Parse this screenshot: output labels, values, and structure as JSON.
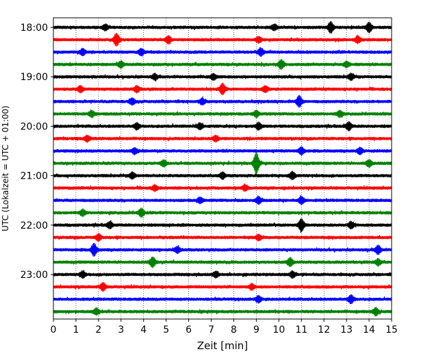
{
  "chart_data": {
    "type": "line",
    "title": "",
    "xlabel": "Zeit  [min]",
    "ylabel": "UTC (Lokalzeit = UTC + 01:00)",
    "xlim": [
      0,
      15
    ],
    "x_ticks": [
      "0",
      "1",
      "2",
      "3",
      "4",
      "5",
      "6",
      "7",
      "8",
      "9",
      "10",
      "11",
      "12",
      "13",
      "14",
      "15"
    ],
    "y_ticks": [
      "18:00",
      "19:00",
      "20:00",
      "21:00",
      "22:00",
      "23:00"
    ],
    "grid": "vertical dotted lines at each minute",
    "colors": [
      "#000000",
      "#ff0000",
      "#0000ff",
      "#008000"
    ],
    "series": [
      {
        "start": "18:00",
        "color": "#000000"
      },
      {
        "start": "18:15",
        "color": "#ff0000"
      },
      {
        "start": "18:30",
        "color": "#0000ff"
      },
      {
        "start": "18:45",
        "color": "#008000"
      },
      {
        "start": "19:00",
        "color": "#000000"
      },
      {
        "start": "19:15",
        "color": "#ff0000"
      },
      {
        "start": "19:30",
        "color": "#0000ff"
      },
      {
        "start": "19:45",
        "color": "#008000"
      },
      {
        "start": "20:00",
        "color": "#000000"
      },
      {
        "start": "20:15",
        "color": "#ff0000"
      },
      {
        "start": "20:30",
        "color": "#0000ff"
      },
      {
        "start": "20:45",
        "color": "#008000"
      },
      {
        "start": "21:00",
        "color": "#000000"
      },
      {
        "start": "21:15",
        "color": "#ff0000"
      },
      {
        "start": "21:30",
        "color": "#0000ff"
      },
      {
        "start": "21:45",
        "color": "#008000"
      },
      {
        "start": "22:00",
        "color": "#000000"
      },
      {
        "start": "22:15",
        "color": "#ff0000"
      },
      {
        "start": "22:30",
        "color": "#0000ff"
      },
      {
        "start": "22:45",
        "color": "#008000"
      },
      {
        "start": "23:00",
        "color": "#000000"
      },
      {
        "start": "23:15",
        "color": "#ff0000"
      },
      {
        "start": "23:30",
        "color": "#0000ff"
      },
      {
        "start": "23:45",
        "color": "#008000"
      }
    ],
    "events": [
      {
        "row": 0,
        "x": 12.3,
        "amp": 1.8
      },
      {
        "row": 0,
        "x": 14.0,
        "amp": 1.6
      },
      {
        "row": 0,
        "x": 2.3,
        "amp": 0.9
      },
      {
        "row": 0,
        "x": 9.8,
        "amp": 0.9
      },
      {
        "row": 1,
        "x": 2.8,
        "amp": 2.0
      },
      {
        "row": 1,
        "x": 5.1,
        "amp": 1.2
      },
      {
        "row": 1,
        "x": 9.1,
        "amp": 0.9
      },
      {
        "row": 1,
        "x": 13.5,
        "amp": 1.0
      },
      {
        "row": 2,
        "x": 1.3,
        "amp": 1.0
      },
      {
        "row": 2,
        "x": 3.9,
        "amp": 1.0
      },
      {
        "row": 2,
        "x": 9.2,
        "amp": 1.2
      },
      {
        "row": 3,
        "x": 3.0,
        "amp": 1.0
      },
      {
        "row": 3,
        "x": 10.1,
        "amp": 1.4
      },
      {
        "row": 3,
        "x": 13.0,
        "amp": 0.9
      },
      {
        "row": 4,
        "x": 4.5,
        "amp": 0.9
      },
      {
        "row": 4,
        "x": 7.1,
        "amp": 0.9
      },
      {
        "row": 4,
        "x": 13.2,
        "amp": 1.0
      },
      {
        "row": 5,
        "x": 1.2,
        "amp": 1.0
      },
      {
        "row": 5,
        "x": 3.7,
        "amp": 1.0
      },
      {
        "row": 5,
        "x": 7.5,
        "amp": 1.8
      },
      {
        "row": 5,
        "x": 9.4,
        "amp": 1.0
      },
      {
        "row": 6,
        "x": 3.5,
        "amp": 1.0
      },
      {
        "row": 6,
        "x": 6.6,
        "amp": 0.9
      },
      {
        "row": 6,
        "x": 10.9,
        "amp": 1.8
      },
      {
        "row": 7,
        "x": 1.7,
        "amp": 1.0
      },
      {
        "row": 7,
        "x": 9.0,
        "amp": 1.0
      },
      {
        "row": 7,
        "x": 12.7,
        "amp": 1.0
      },
      {
        "row": 8,
        "x": 3.7,
        "amp": 1.0
      },
      {
        "row": 8,
        "x": 6.5,
        "amp": 1.0
      },
      {
        "row": 8,
        "x": 9.1,
        "amp": 1.1
      },
      {
        "row": 8,
        "x": 13.1,
        "amp": 1.3
      },
      {
        "row": 9,
        "x": 1.5,
        "amp": 1.0
      },
      {
        "row": 9,
        "x": 7.2,
        "amp": 0.9
      },
      {
        "row": 10,
        "x": 3.6,
        "amp": 1.0
      },
      {
        "row": 10,
        "x": 11.0,
        "amp": 1.2
      },
      {
        "row": 10,
        "x": 13.6,
        "amp": 1.0
      },
      {
        "row": 11,
        "x": 4.9,
        "amp": 1.0
      },
      {
        "row": 11,
        "x": 9.0,
        "amp": 3.6
      },
      {
        "row": 11,
        "x": 14.0,
        "amp": 1.1
      },
      {
        "row": 12,
        "x": 3.5,
        "amp": 1.0
      },
      {
        "row": 12,
        "x": 7.5,
        "amp": 1.0
      },
      {
        "row": 12,
        "x": 10.6,
        "amp": 1.2
      },
      {
        "row": 13,
        "x": 4.5,
        "amp": 0.9
      },
      {
        "row": 13,
        "x": 8.5,
        "amp": 0.9
      },
      {
        "row": 14,
        "x": 6.5,
        "amp": 0.9
      },
      {
        "row": 14,
        "x": 9.1,
        "amp": 1.1
      },
      {
        "row": 14,
        "x": 11.0,
        "amp": 1.2
      },
      {
        "row": 15,
        "x": 1.3,
        "amp": 1.0
      },
      {
        "row": 15,
        "x": 3.9,
        "amp": 1.3
      },
      {
        "row": 16,
        "x": 2.5,
        "amp": 1.0
      },
      {
        "row": 16,
        "x": 11.0,
        "amp": 2.0
      },
      {
        "row": 16,
        "x": 13.2,
        "amp": 1.0
      },
      {
        "row": 17,
        "x": 2.0,
        "amp": 1.0
      },
      {
        "row": 17,
        "x": 9.1,
        "amp": 0.9
      },
      {
        "row": 18,
        "x": 1.8,
        "amp": 2.0
      },
      {
        "row": 18,
        "x": 5.5,
        "amp": 1.0
      },
      {
        "row": 18,
        "x": 14.4,
        "amp": 1.4
      },
      {
        "row": 19,
        "x": 4.4,
        "amp": 1.6
      },
      {
        "row": 19,
        "x": 10.5,
        "amp": 1.3
      },
      {
        "row": 19,
        "x": 14.4,
        "amp": 1.0
      },
      {
        "row": 20,
        "x": 1.3,
        "amp": 1.0
      },
      {
        "row": 20,
        "x": 7.2,
        "amp": 0.9
      },
      {
        "row": 20,
        "x": 10.6,
        "amp": 1.0
      },
      {
        "row": 21,
        "x": 2.2,
        "amp": 1.2
      },
      {
        "row": 21,
        "x": 8.8,
        "amp": 0.9
      },
      {
        "row": 22,
        "x": 9.1,
        "amp": 1.0
      },
      {
        "row": 22,
        "x": 13.2,
        "amp": 1.3
      },
      {
        "row": 23,
        "x": 1.9,
        "amp": 1.0
      },
      {
        "row": 23,
        "x": 14.3,
        "amp": 1.2
      }
    ]
  }
}
